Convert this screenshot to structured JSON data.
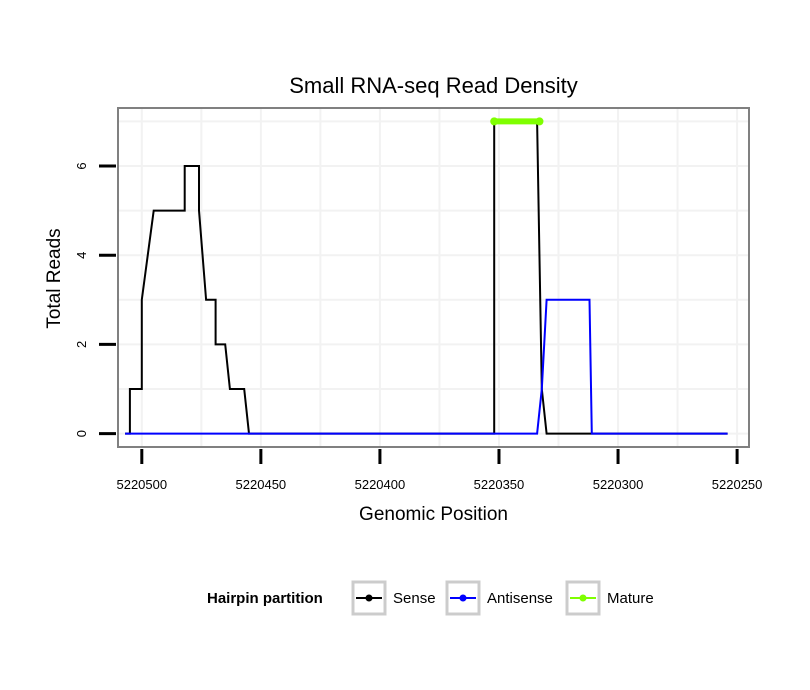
{
  "chart_data": {
    "type": "line",
    "title": "Small RNA-seq Read Density",
    "xlabel": "Genomic Position",
    "ylabel": "Total Reads",
    "xlim": [
      5220510,
      5220245
    ],
    "ylim": [
      -0.3,
      7.3
    ],
    "x_reversed": true,
    "grid": true,
    "x_ticks": [
      5220500,
      5220450,
      5220400,
      5220350,
      5220300,
      5220250
    ],
    "x_tick_labels": [
      "5220500",
      "5220450",
      "5220400",
      "5220350",
      "5220300",
      "5220250"
    ],
    "y_ticks": [
      0,
      2,
      4,
      6
    ],
    "y_tick_labels": [
      "0",
      "2",
      "4",
      "6"
    ],
    "legend": {
      "title": "Hairpin partition",
      "position": "bottom",
      "entries": [
        {
          "label": "Sense",
          "color": "#000000"
        },
        {
          "label": "Antisense",
          "color": "#0000ff"
        },
        {
          "label": "Mature",
          "color": "#7fff00"
        }
      ]
    },
    "series": [
      {
        "name": "Sense",
        "color": "#000000",
        "x": [
          5220507,
          5220505,
          5220505,
          5220502,
          5220502,
          5220500,
          5220500,
          5220495,
          5220495,
          5220489,
          5220489,
          5220486,
          5220486,
          5220482,
          5220482,
          5220480,
          5220480,
          5220476,
          5220476,
          5220473,
          5220473,
          5220471,
          5220471,
          5220469,
          5220469,
          5220467,
          5220467,
          5220465,
          5220465,
          5220463,
          5220463,
          5220460,
          5220460,
          5220457,
          5220457,
          5220455,
          5220455,
          5220448,
          5220448,
          5220352,
          5220352,
          5220350,
          5220350,
          5220334,
          5220334,
          5220332,
          5220332,
          5220330,
          5220330,
          5220254
        ],
        "y": [
          0,
          0,
          1,
          1,
          1,
          1,
          3,
          5,
          5,
          5,
          5,
          5,
          5,
          5,
          6,
          6,
          6,
          6,
          5,
          3,
          3,
          3,
          3,
          3,
          2,
          2,
          2,
          2,
          2,
          1,
          1,
          1,
          1,
          1,
          1,
          0,
          0,
          0,
          0,
          0,
          7,
          7,
          7,
          7,
          7,
          1,
          1,
          0,
          0,
          0
        ]
      },
      {
        "name": "Antisense",
        "color": "#0000ff",
        "x": [
          5220507,
          5220334,
          5220332,
          5220330,
          5220312,
          5220311,
          5220310,
          5220254
        ],
        "y": [
          0,
          0,
          1,
          3,
          3,
          0,
          0,
          0
        ]
      },
      {
        "name": "Mature",
        "color": "#7fff00",
        "x": [
          5220352,
          5220333
        ],
        "y": [
          7,
          7
        ]
      }
    ]
  }
}
